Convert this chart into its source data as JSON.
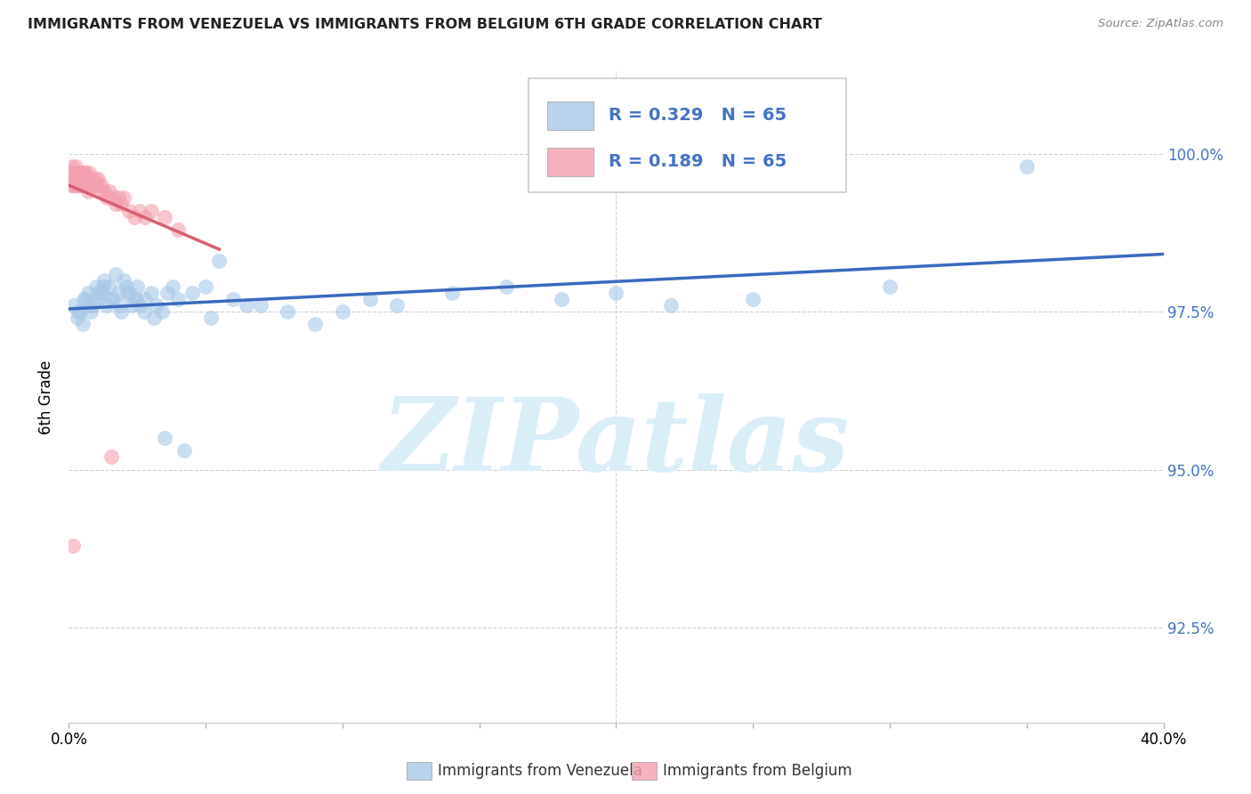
{
  "title": "IMMIGRANTS FROM VENEZUELA VS IMMIGRANTS FROM BELGIUM 6TH GRADE CORRELATION CHART",
  "source": "Source: ZipAtlas.com",
  "ylabel": "6th Grade",
  "y_ticks": [
    92.5,
    95.0,
    97.5,
    100.0
  ],
  "y_tick_labels": [
    "92.5%",
    "95.0%",
    "97.5%",
    "100.0%"
  ],
  "x_range_min": 0.0,
  "x_range_max": 40.0,
  "y_range_min": 91.0,
  "y_range_max": 101.3,
  "legend_R1": "R = 0.329",
  "legend_N1": "N = 65",
  "legend_R2": "R = 0.189",
  "legend_N2": "N = 65",
  "color_venezuela": "#a8c8e8",
  "color_belgium": "#f4a0b0",
  "color_line_venezuela": "#3a6abf",
  "color_line_belgium": "#d96070",
  "watermark": "ZIPatlas",
  "watermark_color": "#daeef8",
  "legend_label1": "Immigrants from Venezuela",
  "legend_label2": "Immigrants from Belgium",
  "venezuela_x": [
    0.2,
    0.3,
    0.4,
    0.5,
    0.6,
    0.7,
    0.8,
    0.9,
    1.0,
    1.1,
    1.2,
    1.3,
    1.4,
    1.5,
    1.6,
    1.7,
    1.8,
    1.9,
    2.0,
    2.1,
    2.2,
    2.3,
    2.4,
    2.5,
    2.6,
    2.8,
    3.0,
    3.2,
    3.4,
    3.6,
    3.8,
    4.0,
    4.5,
    5.0,
    5.5,
    6.0,
    7.0,
    8.0,
    9.0,
    10.0,
    11.0,
    12.0,
    14.0,
    16.0,
    18.0,
    20.0,
    22.0,
    25.0,
    30.0,
    35.0,
    0.35,
    0.55,
    0.75,
    1.05,
    1.25,
    1.55,
    1.85,
    2.15,
    2.45,
    2.75,
    3.1,
    3.5,
    4.2,
    5.2,
    6.5
  ],
  "venezuela_y": [
    97.6,
    97.4,
    97.5,
    97.3,
    97.7,
    97.8,
    97.5,
    97.6,
    97.9,
    97.7,
    97.8,
    98.0,
    97.6,
    97.9,
    97.7,
    98.1,
    97.8,
    97.5,
    98.0,
    97.9,
    97.8,
    97.6,
    97.7,
    97.9,
    97.6,
    97.7,
    97.8,
    97.6,
    97.5,
    97.8,
    97.9,
    97.7,
    97.8,
    97.9,
    98.3,
    97.7,
    97.6,
    97.5,
    97.3,
    97.5,
    97.7,
    97.6,
    97.8,
    97.9,
    97.7,
    97.8,
    97.6,
    97.7,
    97.9,
    99.8,
    97.5,
    97.7,
    97.6,
    97.8,
    97.9,
    97.7,
    97.6,
    97.8,
    97.7,
    97.5,
    97.4,
    95.5,
    95.3,
    97.4,
    97.6
  ],
  "belgium_x": [
    0.05,
    0.08,
    0.1,
    0.12,
    0.15,
    0.18,
    0.2,
    0.22,
    0.25,
    0.28,
    0.3,
    0.32,
    0.35,
    0.38,
    0.4,
    0.42,
    0.45,
    0.48,
    0.5,
    0.52,
    0.55,
    0.58,
    0.6,
    0.65,
    0.7,
    0.75,
    0.8,
    0.85,
    0.9,
    0.95,
    1.0,
    1.05,
    1.1,
    1.15,
    1.2,
    1.3,
    1.4,
    1.5,
    1.6,
    1.7,
    1.8,
    1.9,
    2.0,
    2.2,
    2.4,
    2.6,
    2.8,
    3.0,
    3.5,
    4.0,
    0.07,
    0.13,
    0.17,
    0.23,
    0.27,
    0.33,
    0.37,
    0.43,
    0.47,
    0.53,
    0.62,
    0.72,
    0.82,
    1.55,
    0.15
  ],
  "belgium_y": [
    99.6,
    99.7,
    99.5,
    99.8,
    99.6,
    99.7,
    99.5,
    99.6,
    99.8,
    99.5,
    99.6,
    99.7,
    99.5,
    99.7,
    99.6,
    99.5,
    99.7,
    99.6,
    99.5,
    99.7,
    99.6,
    99.5,
    99.7,
    99.6,
    99.5,
    99.7,
    99.5,
    99.6,
    99.5,
    99.6,
    99.5,
    99.6,
    99.5,
    99.4,
    99.5,
    99.4,
    99.3,
    99.4,
    99.3,
    99.2,
    99.3,
    99.2,
    99.3,
    99.1,
    99.0,
    99.1,
    99.0,
    99.1,
    99.0,
    98.8,
    99.6,
    99.7,
    99.5,
    99.6,
    99.7,
    99.5,
    99.6,
    99.5,
    99.6,
    99.7,
    99.5,
    99.4,
    99.5,
    95.2,
    93.8
  ]
}
